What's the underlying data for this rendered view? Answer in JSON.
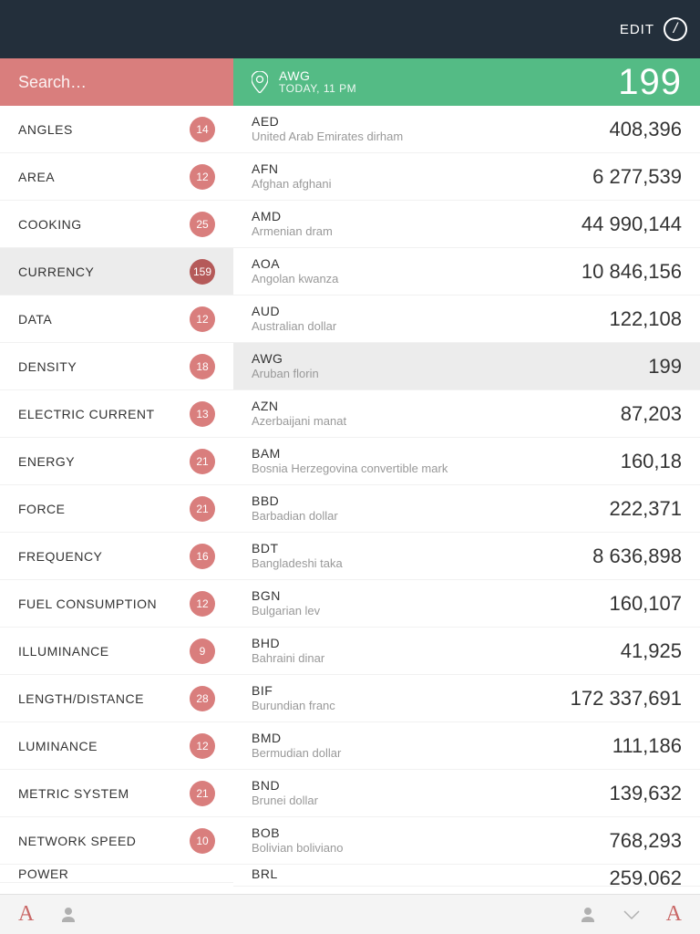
{
  "colors": {
    "topbar_bg": "#232f3b",
    "sidebar_header_bg": "#d97e7d",
    "main_header_bg": "#54bb85",
    "badge_bg": "#d97e7d",
    "badge_selected_bg": "#b55a59",
    "selected_row_bg": "#ececec",
    "accent_A": "#c96766",
    "muted_icon": "#b0b0b0"
  },
  "topbar": {
    "edit_label": "EDIT"
  },
  "search": {
    "placeholder": "Search…"
  },
  "categories": [
    {
      "label": "ANGLES",
      "count": "14",
      "selected": false
    },
    {
      "label": "AREA",
      "count": "12",
      "selected": false
    },
    {
      "label": "COOKING",
      "count": "25",
      "selected": false
    },
    {
      "label": "CURRENCY",
      "count": "159",
      "selected": true
    },
    {
      "label": "DATA",
      "count": "12",
      "selected": false
    },
    {
      "label": "DENSITY",
      "count": "18",
      "selected": false
    },
    {
      "label": "ELECTRIC CURRENT",
      "count": "13",
      "selected": false
    },
    {
      "label": "ENERGY",
      "count": "21",
      "selected": false
    },
    {
      "label": "FORCE",
      "count": "21",
      "selected": false
    },
    {
      "label": "FREQUENCY",
      "count": "16",
      "selected": false
    },
    {
      "label": "FUEL CONSUMPTION",
      "count": "12",
      "selected": false
    },
    {
      "label": "ILLUMINANCE",
      "count": "9",
      "selected": false
    },
    {
      "label": "LENGTH/DISTANCE",
      "count": "28",
      "selected": false
    },
    {
      "label": "LUMINANCE",
      "count": "12",
      "selected": false
    },
    {
      "label": "METRIC SYSTEM",
      "count": "21",
      "selected": false
    },
    {
      "label": "NETWORK SPEED",
      "count": "10",
      "selected": false
    },
    {
      "label": "POWER",
      "count": "",
      "selected": false,
      "partial": true
    }
  ],
  "main_header": {
    "code": "AWG",
    "subtitle": "TODAY, 11 PM",
    "big_value": "199"
  },
  "currencies": [
    {
      "code": "AED",
      "name": "United Arab Emirates dirham",
      "value": "408,396",
      "selected": false
    },
    {
      "code": "AFN",
      "name": "Afghan afghani",
      "value": "6 277,539",
      "selected": false
    },
    {
      "code": "AMD",
      "name": "Armenian dram",
      "value": "44 990,144",
      "selected": false
    },
    {
      "code": "AOA",
      "name": "Angolan kwanza",
      "value": "10 846,156",
      "selected": false
    },
    {
      "code": "AUD",
      "name": "Australian dollar",
      "value": "122,108",
      "selected": false
    },
    {
      "code": "AWG",
      "name": "Aruban florin",
      "value": "199",
      "selected": true
    },
    {
      "code": "AZN",
      "name": "Azerbaijani manat",
      "value": "87,203",
      "selected": false
    },
    {
      "code": "BAM",
      "name": "Bosnia Herzegovina convertible mark",
      "value": "160,18",
      "selected": false
    },
    {
      "code": "BBD",
      "name": "Barbadian dollar",
      "value": "222,371",
      "selected": false
    },
    {
      "code": "BDT",
      "name": "Bangladeshi taka",
      "value": "8 636,898",
      "selected": false
    },
    {
      "code": "BGN",
      "name": "Bulgarian lev",
      "value": "160,107",
      "selected": false
    },
    {
      "code": "BHD",
      "name": "Bahraini dinar",
      "value": "41,925",
      "selected": false
    },
    {
      "code": "BIF",
      "name": "Burundian franc",
      "value": "172 337,691",
      "selected": false
    },
    {
      "code": "BMD",
      "name": "Bermudian dollar",
      "value": "111,186",
      "selected": false
    },
    {
      "code": "BND",
      "name": "Brunei dollar",
      "value": "139,632",
      "selected": false
    },
    {
      "code": "BOB",
      "name": "Bolivian boliviano",
      "value": "768,293",
      "selected": false
    },
    {
      "code": "BRL",
      "name": "",
      "value": "259,062",
      "selected": false,
      "partial": true
    }
  ]
}
